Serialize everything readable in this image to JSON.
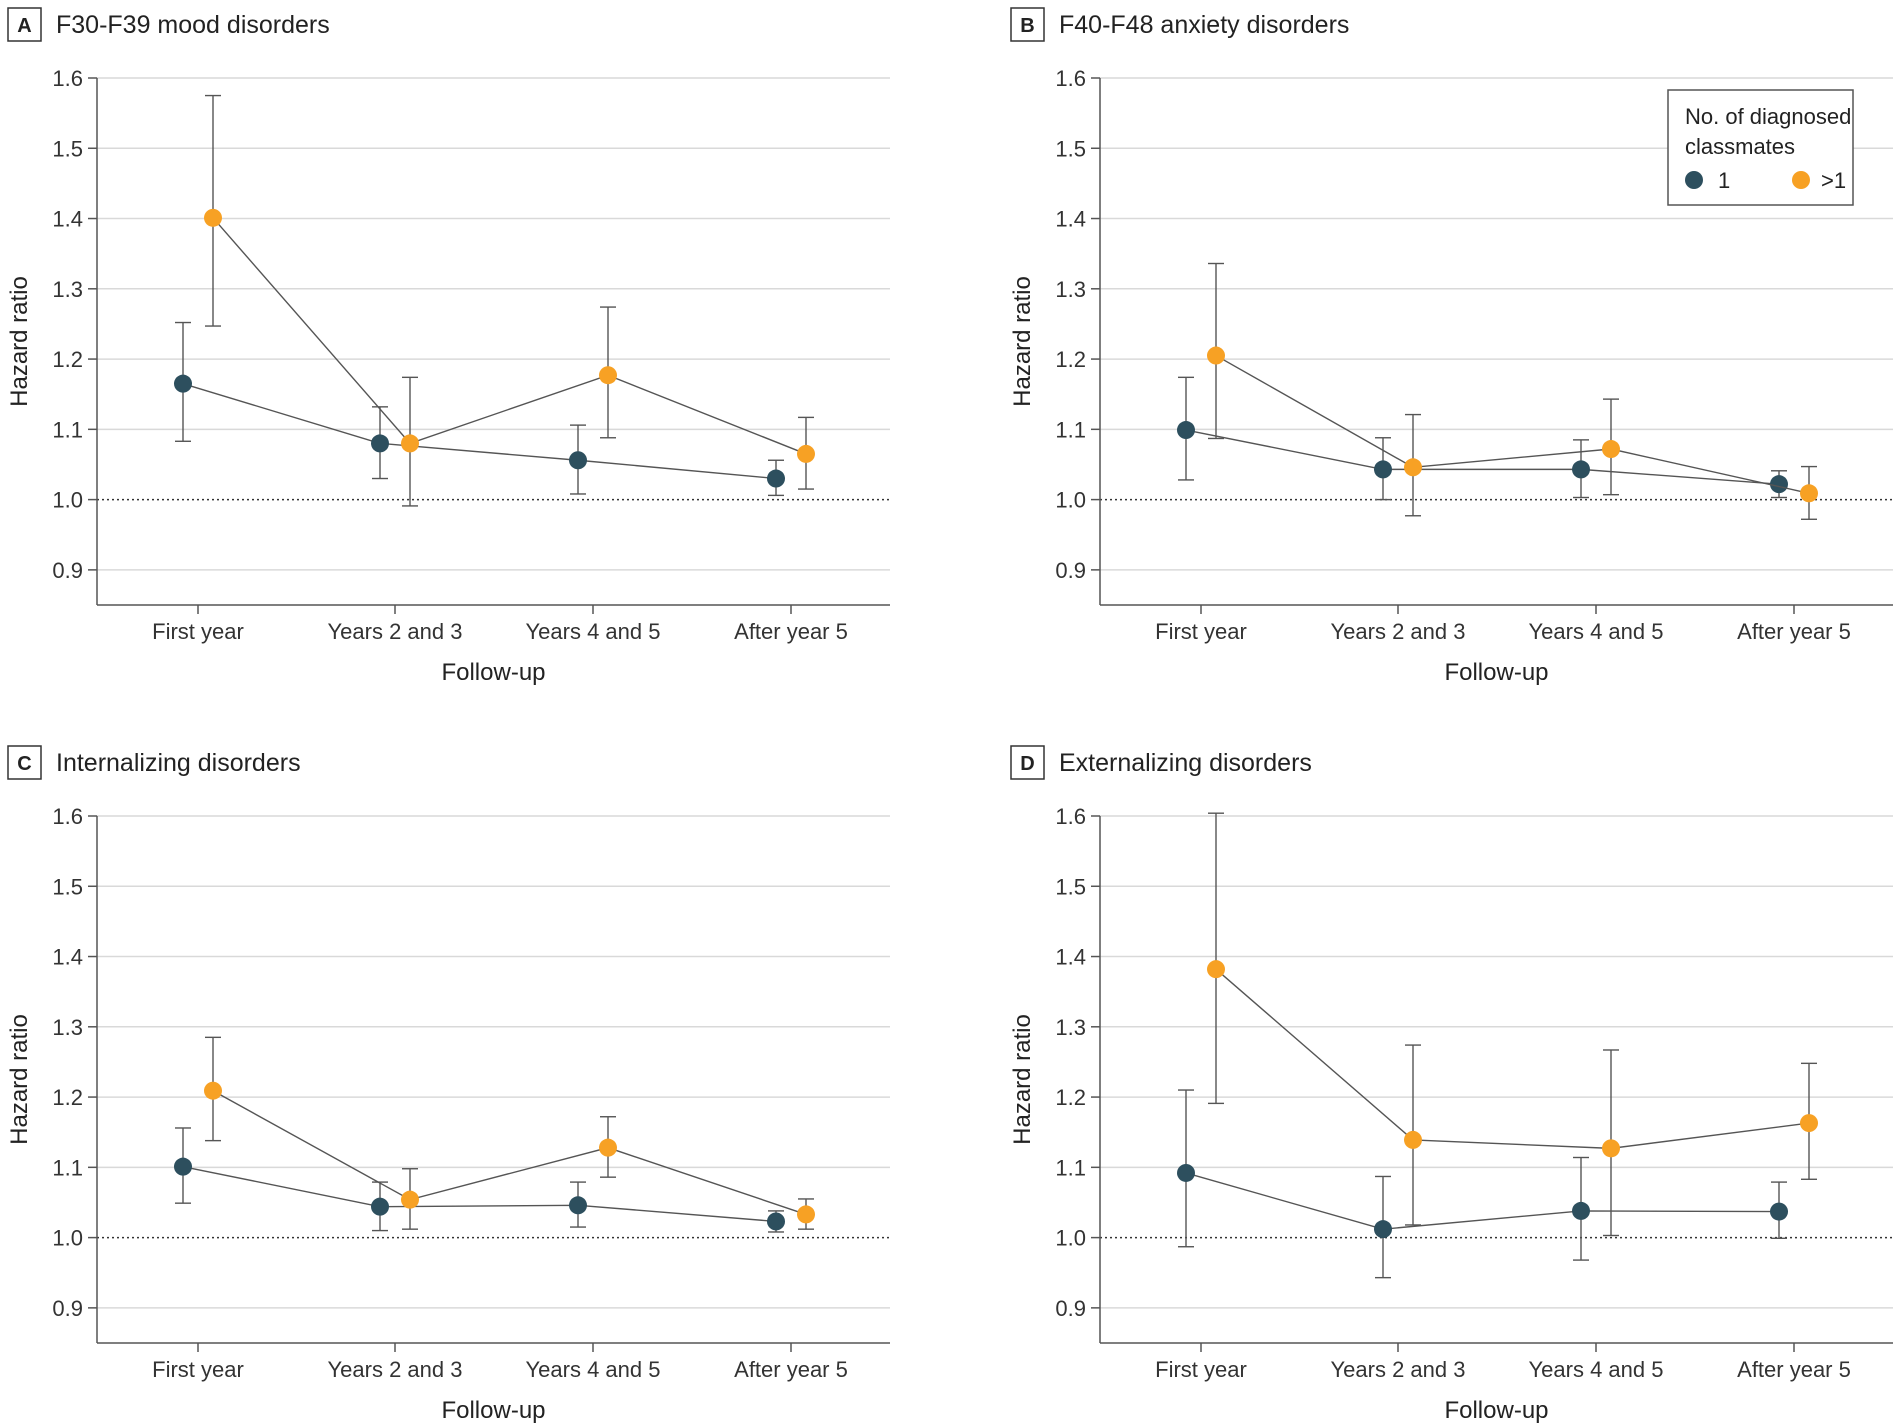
{
  "colors": {
    "series1": "#2d4f5e",
    "series2": "#f7a124",
    "line": "#555555",
    "grid": "#d9d9d9",
    "axis": "#555555"
  },
  "legend": {
    "title_line1": "No. of diagnosed",
    "title_line2": "classmates",
    "items": [
      "1",
      ">1"
    ],
    "placement": "top-right of panel B"
  },
  "chart_data": [
    {
      "type": "scatter",
      "panel": "A",
      "title": "F30-F39 mood disorders",
      "xlabel": "Follow-up",
      "ylabel": "Hazard ratio",
      "categories": [
        "First year",
        "Years 2 and 3",
        "Years 4 and 5",
        "After year 5"
      ],
      "yticks": [
        "0.9",
        "1.0",
        "1.1",
        "1.2",
        "1.3",
        "1.4",
        "1.5",
        "1.6"
      ],
      "ylim": [
        0.85,
        1.6
      ],
      "reference_line": 1.0,
      "grid": true,
      "series": [
        {
          "name": "1",
          "values": [
            1.165,
            1.08,
            1.056,
            1.03
          ],
          "lower": [
            1.083,
            1.03,
            1.008,
            1.006
          ],
          "upper": [
            1.252,
            1.132,
            1.106,
            1.056
          ]
        },
        {
          "name": ">1",
          "values": [
            1.401,
            1.08,
            1.177,
            1.065
          ],
          "lower": [
            1.247,
            0.991,
            1.088,
            1.015
          ],
          "upper": [
            1.575,
            1.174,
            1.274,
            1.117
          ]
        }
      ]
    },
    {
      "type": "scatter",
      "panel": "B",
      "title": "F40-F48 anxiety disorders",
      "xlabel": "Follow-up",
      "ylabel": "Hazard ratio",
      "categories": [
        "First year",
        "Years 2 and 3",
        "Years 4 and 5",
        "After year 5"
      ],
      "yticks": [
        "0.9",
        "1.0",
        "1.1",
        "1.2",
        "1.3",
        "1.4",
        "1.5",
        "1.6"
      ],
      "ylim": [
        0.85,
        1.6
      ],
      "reference_line": 1.0,
      "grid": true,
      "series": [
        {
          "name": "1",
          "values": [
            1.099,
            1.043,
            1.043,
            1.022
          ],
          "lower": [
            1.028,
            1.0,
            1.003,
            1.003
          ],
          "upper": [
            1.174,
            1.088,
            1.085,
            1.041
          ]
        },
        {
          "name": ">1",
          "values": [
            1.205,
            1.046,
            1.072,
            1.009
          ],
          "lower": [
            1.087,
            0.977,
            1.007,
            0.972
          ],
          "upper": [
            1.336,
            1.121,
            1.143,
            1.047
          ]
        }
      ]
    },
    {
      "type": "scatter",
      "panel": "C",
      "title": "Internalizing disorders",
      "xlabel": "Follow-up",
      "ylabel": "Hazard ratio",
      "categories": [
        "First year",
        "Years 2 and 3",
        "Years 4 and 5",
        "After year 5"
      ],
      "yticks": [
        "0.9",
        "1.0",
        "1.1",
        "1.2",
        "1.3",
        "1.4",
        "1.5",
        "1.6"
      ],
      "ylim": [
        0.85,
        1.6
      ],
      "reference_line": 1.0,
      "grid": true,
      "series": [
        {
          "name": "1",
          "values": [
            1.101,
            1.044,
            1.046,
            1.023
          ],
          "lower": [
            1.049,
            1.01,
            1.015,
            1.008
          ],
          "upper": [
            1.156,
            1.079,
            1.079,
            1.038
          ]
        },
        {
          "name": ">1",
          "values": [
            1.209,
            1.054,
            1.128,
            1.033
          ],
          "lower": [
            1.138,
            1.012,
            1.086,
            1.012
          ],
          "upper": [
            1.285,
            1.098,
            1.172,
            1.055
          ]
        }
      ]
    },
    {
      "type": "scatter",
      "panel": "D",
      "title": "Externalizing disorders",
      "xlabel": "Follow-up",
      "ylabel": "Hazard ratio",
      "categories": [
        "First year",
        "Years 2 and 3",
        "Years 4 and 5",
        "After year 5"
      ],
      "yticks": [
        "0.9",
        "1.0",
        "1.1",
        "1.2",
        "1.3",
        "1.4",
        "1.5",
        "1.6"
      ],
      "ylim": [
        0.85,
        1.6
      ],
      "reference_line": 1.0,
      "grid": true,
      "series": [
        {
          "name": "1",
          "values": [
            1.092,
            1.012,
            1.038,
            1.037
          ],
          "lower": [
            0.987,
            0.943,
            0.968,
            0.999
          ],
          "upper": [
            1.21,
            1.087,
            1.114,
            1.079
          ]
        },
        {
          "name": ">1",
          "values": [
            1.382,
            1.139,
            1.127,
            1.163
          ],
          "lower": [
            1.191,
            1.018,
            1.003,
            1.083
          ],
          "upper": [
            1.604,
            1.274,
            1.267,
            1.248
          ]
        }
      ]
    }
  ]
}
